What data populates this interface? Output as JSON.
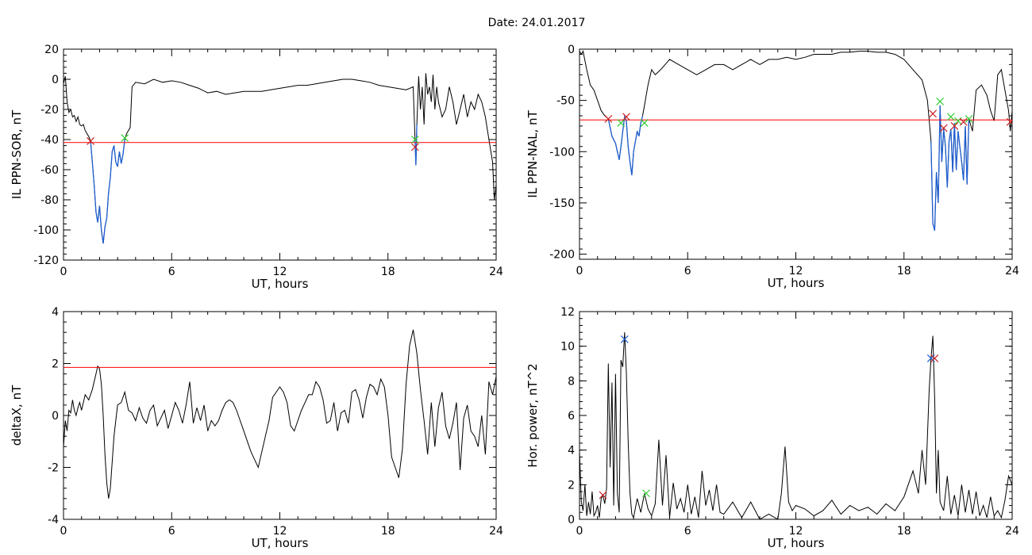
{
  "title": "Date:  24.01.2017",
  "colors": {
    "data_line": "#000000",
    "threshold": "#ff0000",
    "highlight": "#1f5fd0",
    "start_marker": "#33cc33",
    "end_marker": "#cc2222",
    "peak_marker": "#1f5fd0"
  },
  "chart_data": [
    {
      "id": "p1",
      "type": "line",
      "xlabel": "UT, hours",
      "ylabel": "IL PPN-SOR, nT",
      "xlim": [
        0,
        24
      ],
      "ylim": [
        -120,
        20
      ],
      "xticks": [
        "0",
        "6",
        "12",
        "18",
        "24"
      ],
      "yticks": [
        "20",
        "0",
        "-20",
        "-40",
        "-60",
        "-80",
        "-100",
        "-120"
      ],
      "threshold": -42,
      "highlight_intervals": [
        [
          1.5,
          3.4
        ],
        [
          19.5,
          19.6
        ]
      ],
      "markers": [
        {
          "type": "red-x",
          "x": 1.5,
          "y": -41
        },
        {
          "type": "green-x",
          "x": 3.4,
          "y": -39
        },
        {
          "type": "green-x",
          "x": 19.5,
          "y": -40
        },
        {
          "type": "red-x",
          "x": 19.5,
          "y": -45
        }
      ],
      "x": [
        0,
        0.1,
        0.2,
        0.3,
        0.4,
        0.5,
        0.6,
        0.7,
        0.8,
        0.9,
        1.0,
        1.1,
        1.2,
        1.3,
        1.4,
        1.5,
        1.6,
        1.7,
        1.8,
        1.9,
        2.0,
        2.1,
        2.2,
        2.3,
        2.4,
        2.5,
        2.6,
        2.7,
        2.8,
        2.9,
        3.0,
        3.1,
        3.2,
        3.3,
        3.4,
        3.5,
        3.6,
        3.7,
        3.8,
        4.0,
        4.5,
        5.0,
        5.5,
        6.0,
        6.5,
        7.0,
        7.5,
        8.0,
        8.5,
        9.0,
        9.5,
        10.0,
        10.5,
        11.0,
        11.5,
        12.0,
        12.5,
        13.0,
        13.5,
        14.0,
        14.5,
        15.0,
        15.5,
        16.0,
        16.5,
        17.0,
        17.5,
        18.0,
        18.5,
        19.0,
        19.4,
        19.5,
        19.55,
        19.6,
        19.7,
        19.8,
        19.9,
        20.0,
        20.1,
        20.2,
        20.3,
        20.4,
        20.5,
        20.6,
        20.7,
        20.8,
        21.0,
        21.2,
        21.4,
        21.6,
        21.8,
        22.0,
        22.2,
        22.4,
        22.6,
        22.8,
        23.0,
        23.2,
        23.4,
        23.6,
        23.8,
        23.9,
        24.0
      ],
      "y": [
        -3,
        2,
        -15,
        -22,
        -20,
        -25,
        -24,
        -28,
        -25,
        -30,
        -31,
        -30,
        -34,
        -36,
        -38,
        -41,
        -55,
        -70,
        -88,
        -95,
        -84,
        -100,
        -109,
        -98,
        -92,
        -75,
        -65,
        -48,
        -44,
        -55,
        -58,
        -48,
        -56,
        -50,
        -40,
        -36,
        -34,
        -32,
        -5,
        -2,
        -3,
        0,
        -2,
        -1,
        -2,
        -4,
        -6,
        -9,
        -8,
        -10,
        -9,
        -8,
        -8,
        -8,
        -7,
        -6,
        -5,
        -4,
        -4,
        -3,
        -2,
        -1,
        0,
        0,
        -1,
        -2,
        -4,
        -5,
        -6,
        -7,
        -5,
        -40,
        -57,
        -30,
        2,
        -20,
        -5,
        -30,
        4,
        -10,
        -5,
        -15,
        3,
        -20,
        -5,
        -15,
        -25,
        -20,
        -5,
        -15,
        -30,
        -20,
        -10,
        -25,
        -15,
        -20,
        -10,
        -15,
        -25,
        -40,
        -55,
        -80,
        -70
      ]
    },
    {
      "id": "p2",
      "type": "line",
      "xlabel": "UT, hours",
      "ylabel": "IL PPN-NAL, nT",
      "xlim": [
        0,
        24
      ],
      "ylim": [
        -205,
        0
      ],
      "xticks": [
        "0",
        "6",
        "12",
        "18",
        "24"
      ],
      "yticks": [
        "0",
        "-50",
        "-100",
        "-150",
        "-200"
      ],
      "threshold": -69,
      "highlight_intervals": [
        [
          1.5,
          3.5
        ],
        [
          19.4,
          21.6
        ]
      ],
      "markers": [
        {
          "type": "red-x",
          "x": 1.6,
          "y": -68
        },
        {
          "type": "green-x",
          "x": 2.3,
          "y": -72
        },
        {
          "type": "red-x",
          "x": 2.6,
          "y": -66
        },
        {
          "type": "green-x",
          "x": 3.6,
          "y": -72
        },
        {
          "type": "red-x",
          "x": 19.6,
          "y": -63
        },
        {
          "type": "green-x",
          "x": 20.0,
          "y": -51
        },
        {
          "type": "red-x",
          "x": 20.2,
          "y": -77
        },
        {
          "type": "green-x",
          "x": 20.6,
          "y": -66
        },
        {
          "type": "red-x",
          "x": 20.8,
          "y": -75
        },
        {
          "type": "green-x",
          "x": 21.0,
          "y": -70
        },
        {
          "type": "red-x",
          "x": 21.3,
          "y": -71
        },
        {
          "type": "green-x",
          "x": 21.6,
          "y": -68
        },
        {
          "type": "red-x",
          "x": 23.9,
          "y": -71
        }
      ],
      "x": [
        0,
        0.1,
        0.2,
        0.4,
        0.6,
        0.8,
        1.0,
        1.2,
        1.4,
        1.6,
        1.8,
        2.0,
        2.1,
        2.2,
        2.3,
        2.4,
        2.5,
        2.6,
        2.7,
        2.8,
        2.9,
        3.0,
        3.1,
        3.2,
        3.3,
        3.4,
        3.5,
        3.6,
        3.8,
        4.0,
        4.2,
        4.5,
        5.0,
        5.5,
        6.0,
        6.5,
        7.0,
        7.5,
        8.0,
        8.5,
        9.0,
        9.5,
        10.0,
        10.5,
        11.0,
        11.5,
        12.0,
        12.5,
        13.0,
        13.5,
        14.0,
        14.5,
        15.0,
        15.5,
        16.0,
        16.5,
        17.0,
        17.5,
        18.0,
        18.5,
        19.0,
        19.3,
        19.5,
        19.6,
        19.7,
        19.8,
        19.9,
        20.0,
        20.1,
        20.2,
        20.3,
        20.4,
        20.5,
        20.6,
        20.7,
        20.8,
        20.9,
        21.0,
        21.1,
        21.2,
        21.3,
        21.4,
        21.5,
        21.6,
        21.8,
        22.0,
        22.3,
        22.6,
        22.8,
        23.0,
        23.2,
        23.4,
        23.6,
        23.8,
        23.9,
        24.0
      ],
      "y": [
        -2,
        -5,
        -2,
        -20,
        -35,
        -40,
        -50,
        -60,
        -65,
        -68,
        -85,
        -92,
        -100,
        -108,
        -95,
        -80,
        -66,
        -70,
        -95,
        -110,
        -123,
        -100,
        -90,
        -80,
        -85,
        -72,
        -65,
        -55,
        -35,
        -20,
        -25,
        -20,
        -10,
        -15,
        -20,
        -25,
        -20,
        -15,
        -15,
        -20,
        -15,
        -10,
        -15,
        -10,
        -10,
        -8,
        -10,
        -8,
        -5,
        -5,
        -5,
        -3,
        -3,
        -2,
        -2,
        -3,
        -3,
        -5,
        -10,
        -20,
        -30,
        -50,
        -90,
        -170,
        -177,
        -120,
        -150,
        -55,
        -110,
        -78,
        -95,
        -135,
        -90,
        -78,
        -120,
        -72,
        -118,
        -80,
        -95,
        -110,
        -128,
        -75,
        -132,
        -68,
        -80,
        -40,
        -35,
        -45,
        -60,
        -70,
        -25,
        -20,
        -40,
        -60,
        -80,
        -60
      ]
    },
    {
      "id": "p3",
      "type": "line",
      "xlabel": "UT, hours",
      "ylabel": "deltaX, nT",
      "xlim": [
        0,
        24
      ],
      "ylim": [
        -4,
        4
      ],
      "xticks": [
        "0",
        "6",
        "12",
        "18",
        "24"
      ],
      "yticks": [
        "4",
        "2",
        "0",
        "-2",
        "-4"
      ],
      "threshold": 1.85,
      "highlight_intervals": [],
      "markers": [],
      "x": [
        0,
        0.1,
        0.2,
        0.3,
        0.4,
        0.5,
        0.6,
        0.7,
        0.8,
        0.9,
        1.0,
        1.2,
        1.4,
        1.6,
        1.8,
        1.9,
        2.0,
        2.1,
        2.2,
        2.3,
        2.4,
        2.5,
        2.6,
        2.8,
        3.0,
        3.2,
        3.4,
        3.6,
        3.8,
        4.0,
        4.2,
        4.4,
        4.6,
        4.8,
        5.0,
        5.2,
        5.4,
        5.6,
        5.8,
        6.0,
        6.2,
        6.4,
        6.6,
        6.8,
        7.0,
        7.2,
        7.4,
        7.6,
        7.8,
        8.0,
        8.2,
        8.4,
        8.6,
        8.8,
        9.0,
        9.2,
        9.4,
        9.6,
        9.8,
        10.0,
        10.2,
        10.4,
        10.6,
        10.8,
        11.0,
        11.2,
        11.4,
        11.6,
        11.8,
        12.0,
        12.2,
        12.4,
        12.6,
        12.8,
        13.0,
        13.2,
        13.4,
        13.6,
        13.8,
        14.0,
        14.2,
        14.4,
        14.6,
        14.8,
        15.0,
        15.2,
        15.4,
        15.6,
        15.8,
        16.0,
        16.2,
        16.4,
        16.6,
        16.8,
        17.0,
        17.2,
        17.4,
        17.6,
        17.8,
        18.0,
        18.2,
        18.4,
        18.6,
        18.8,
        19.0,
        19.2,
        19.4,
        19.6,
        19.8,
        20.0,
        20.2,
        20.4,
        20.6,
        20.8,
        21.0,
        21.2,
        21.4,
        21.6,
        21.8,
        22.0,
        22.2,
        22.4,
        22.6,
        22.8,
        23.0,
        23.2,
        23.4,
        23.6,
        23.8,
        24.0
      ],
      "y": [
        -1.2,
        -0.2,
        -0.6,
        0.2,
        0.1,
        0.6,
        0.2,
        0.0,
        0.3,
        0.5,
        0.2,
        0.8,
        0.6,
        1.0,
        1.6,
        1.9,
        1.8,
        1.2,
        0.0,
        -1.5,
        -2.6,
        -3.2,
        -2.8,
        -0.8,
        0.4,
        0.5,
        0.9,
        0.2,
        0.1,
        -0.2,
        0.3,
        -0.1,
        -0.3,
        0.2,
        0.4,
        -0.4,
        -0.1,
        0.2,
        -0.5,
        0.0,
        0.5,
        0.2,
        -0.3,
        0.4,
        1.3,
        -0.3,
        0.3,
        -0.2,
        0.4,
        -0.6,
        -0.2,
        -0.4,
        -0.2,
        0.2,
        0.5,
        0.6,
        0.5,
        0.2,
        -0.2,
        -0.6,
        -1.0,
        -1.4,
        -1.7,
        -2.0,
        -1.4,
        -0.8,
        -0.2,
        0.7,
        0.9,
        1.1,
        0.9,
        0.5,
        -0.4,
        -0.6,
        -0.2,
        0.2,
        0.5,
        0.8,
        0.8,
        1.3,
        1.1,
        0.6,
        -0.3,
        -0.2,
        0.5,
        -0.6,
        0.1,
        0.2,
        -0.3,
        0.9,
        1.0,
        0.6,
        -0.1,
        0.7,
        1.2,
        1.1,
        0.8,
        1.4,
        1.1,
        0.0,
        -1.6,
        -2.0,
        -2.4,
        -1.3,
        1.2,
        2.7,
        3.3,
        2.4,
        1.0,
        -0.2,
        -1.5,
        0.5,
        -1.2,
        0.3,
        0.9,
        -0.4,
        -0.9,
        -0.3,
        0.5,
        -2.1,
        -0.1,
        0.4,
        -0.6,
        -0.8,
        -1.2,
        0.0,
        -1.5,
        1.3,
        0.8,
        1.5
      ]
    },
    {
      "id": "p4",
      "type": "line",
      "xlabel": "UT, hours",
      "ylabel": "Hor. power, nT^2",
      "xlim": [
        0,
        24
      ],
      "ylim": [
        0,
        12
      ],
      "xticks": [
        "0",
        "6",
        "12",
        "18",
        "24"
      ],
      "yticks": [
        "12",
        "10",
        "8",
        "6",
        "4",
        "2",
        "0"
      ],
      "highlight_intervals": [],
      "markers": [
        {
          "type": "red-x",
          "x": 1.3,
          "y": 1.4
        },
        {
          "type": "blue-x",
          "x": 2.5,
          "y": 10.4
        },
        {
          "type": "green-x",
          "x": 3.7,
          "y": 1.5
        },
        {
          "type": "blue-x",
          "x": 19.5,
          "y": 9.3
        },
        {
          "type": "red-x",
          "x": 19.7,
          "y": 9.3
        }
      ],
      "x": [
        0,
        0.1,
        0.2,
        0.3,
        0.4,
        0.5,
        0.6,
        0.7,
        0.8,
        0.9,
        1.0,
        1.1,
        1.2,
        1.3,
        1.4,
        1.5,
        1.6,
        1.7,
        1.8,
        1.9,
        2.0,
        2.1,
        2.2,
        2.3,
        2.4,
        2.5,
        2.6,
        2.7,
        2.8,
        2.9,
        3.0,
        3.2,
        3.4,
        3.6,
        3.8,
        4.0,
        4.2,
        4.4,
        4.6,
        4.8,
        5.0,
        5.2,
        5.4,
        5.6,
        5.8,
        6.0,
        6.2,
        6.4,
        6.6,
        6.8,
        7.0,
        7.2,
        7.4,
        7.6,
        7.8,
        8.0,
        8.5,
        9.0,
        9.5,
        10.0,
        10.5,
        11.0,
        11.2,
        11.4,
        11.6,
        11.8,
        12.0,
        12.5,
        13.0,
        13.5,
        14.0,
        14.5,
        15.0,
        15.5,
        16.0,
        16.5,
        17.0,
        17.5,
        18.0,
        18.5,
        18.8,
        19.0,
        19.2,
        19.4,
        19.5,
        19.6,
        19.7,
        19.8,
        19.9,
        20.0,
        20.2,
        20.4,
        20.6,
        20.8,
        21.0,
        21.2,
        21.4,
        21.6,
        21.8,
        22.0,
        22.2,
        22.4,
        22.6,
        22.8,
        23.0,
        23.2,
        23.4,
        23.6,
        23.8,
        24.0
      ],
      "y": [
        3.9,
        1.0,
        0.5,
        2.0,
        0.2,
        1.0,
        0.3,
        1.6,
        0.2,
        0.4,
        0.8,
        0.1,
        1.2,
        1.4,
        0.9,
        1.8,
        9.0,
        3.0,
        7.9,
        0.8,
        8.4,
        1.5,
        0.4,
        9.2,
        8.8,
        10.8,
        8.5,
        4.5,
        1.5,
        0.3,
        0.1,
        1.2,
        0.4,
        1.5,
        0.6,
        0.2,
        0.9,
        4.6,
        0.8,
        3.7,
        0.1,
        2.1,
        0.6,
        1.2,
        0.4,
        2.0,
        0.3,
        1.3,
        0.1,
        2.8,
        0.8,
        1.7,
        0.5,
        2.0,
        0.4,
        0.3,
        1.0,
        0.1,
        1.0,
        0.0,
        0.3,
        0.0,
        1.5,
        4.2,
        1.0,
        0.5,
        0.8,
        0.6,
        0.2,
        0.5,
        1.1,
        0.3,
        0.8,
        0.5,
        0.7,
        0.3,
        0.9,
        0.5,
        1.3,
        2.8,
        1.5,
        4.0,
        2.0,
        7.5,
        9.3,
        10.6,
        7.0,
        1.5,
        4.0,
        1.0,
        0.5,
        2.5,
        0.3,
        1.4,
        0.2,
        2.0,
        0.4,
        1.7,
        0.3,
        1.6,
        0.2,
        0.8,
        0.1,
        1.3,
        0.2,
        0.5,
        0.1,
        1.1,
        2.5,
        2.0
      ]
    }
  ]
}
